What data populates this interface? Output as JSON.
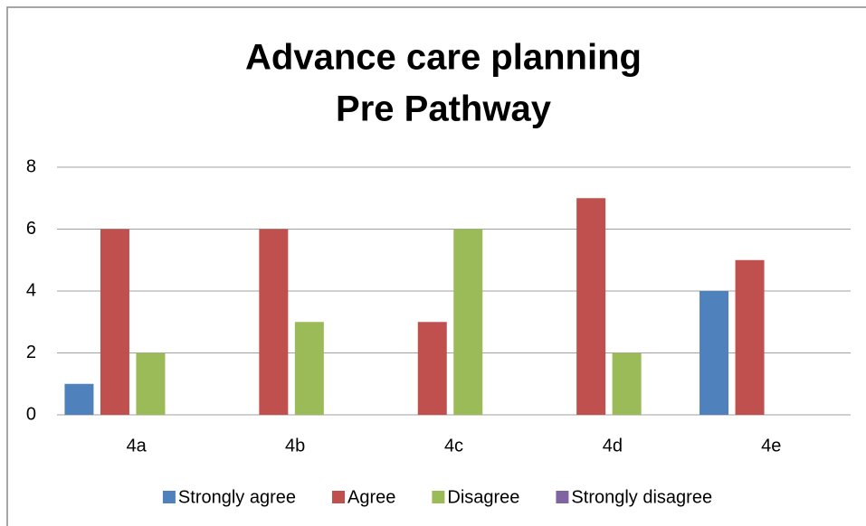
{
  "chart_data": {
    "type": "bar",
    "title": [
      "Advance care planning",
      "Pre Pathway"
    ],
    "categories": [
      "4a",
      "4b",
      "4c",
      "4d",
      "4e"
    ],
    "series": [
      {
        "name": "Strongly agree",
        "color": "#4f81bd",
        "values": [
          1,
          0,
          0,
          0,
          4
        ]
      },
      {
        "name": "Agree",
        "color": "#c0504d",
        "values": [
          6,
          6,
          3,
          7,
          5
        ]
      },
      {
        "name": "Disagree",
        "color": "#9bbb59",
        "values": [
          2,
          3,
          6,
          2,
          0
        ]
      },
      {
        "name": "Strongly disagree",
        "color": "#8064a2",
        "values": [
          0,
          0,
          0,
          0,
          0
        ]
      }
    ],
    "ylim": [
      0,
      8
    ],
    "yticks": [
      0,
      2,
      4,
      6,
      8
    ],
    "grid": true,
    "legend": "bottom"
  }
}
